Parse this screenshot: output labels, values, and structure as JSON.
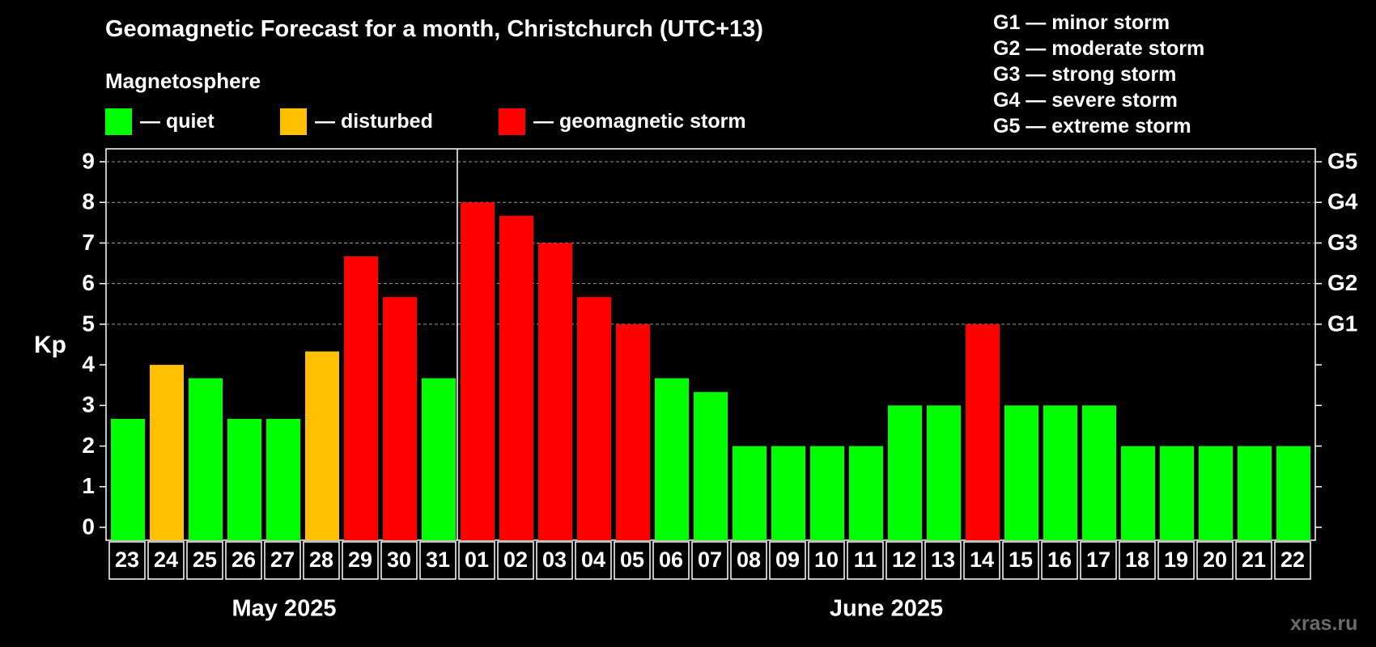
{
  "header": {
    "title": "Geomagnetic Forecast for a month, Christchurch (UTC+13)",
    "subtitle": "Magnetosphere"
  },
  "legend": [
    {
      "label": "— quiet",
      "color": "#00ff00"
    },
    {
      "label": "— disturbed",
      "color": "#ffc000"
    },
    {
      "label": "— geomagnetic storm",
      "color": "#ff0000"
    }
  ],
  "storm_scale": [
    "G1 — minor storm",
    "G2 — moderate storm",
    "G3 — strong storm",
    "G4 — severe storm",
    "G5 — extreme storm"
  ],
  "watermark": "xras.ru",
  "chart_data": {
    "type": "bar",
    "ylabel": "Kp",
    "ylim": [
      0,
      9
    ],
    "yticks": [
      "0",
      "1",
      "2",
      "3",
      "4",
      "5",
      "6",
      "7",
      "8",
      "9"
    ],
    "right_ticks": [
      {
        "value": 5,
        "label": "G1"
      },
      {
        "value": 6,
        "label": "G2"
      },
      {
        "value": 7,
        "label": "G3"
      },
      {
        "value": 8,
        "label": "G4"
      },
      {
        "value": 9,
        "label": "G5"
      }
    ],
    "grid": "dashed horizontal at Kp 5–9",
    "categories": [
      "23",
      "24",
      "25",
      "26",
      "27",
      "28",
      "29",
      "30",
      "31",
      "01",
      "02",
      "03",
      "04",
      "05",
      "06",
      "07",
      "08",
      "09",
      "10",
      "11",
      "12",
      "13",
      "14",
      "15",
      "16",
      "17",
      "18",
      "19",
      "20",
      "21",
      "22"
    ],
    "values": [
      2.67,
      4,
      3.67,
      2.67,
      2.67,
      4.33,
      6.67,
      5.67,
      3.67,
      8,
      7.67,
      7,
      5.67,
      5,
      3.67,
      3.33,
      2,
      2,
      2,
      2,
      3,
      3,
      5,
      3,
      3,
      3,
      2,
      2,
      2,
      2,
      2
    ],
    "status": [
      "quiet",
      "disturbed",
      "quiet",
      "quiet",
      "quiet",
      "disturbed",
      "storm",
      "storm",
      "quiet",
      "storm",
      "storm",
      "storm",
      "storm",
      "storm",
      "quiet",
      "quiet",
      "quiet",
      "quiet",
      "quiet",
      "quiet",
      "quiet",
      "quiet",
      "storm",
      "quiet",
      "quiet",
      "quiet",
      "quiet",
      "quiet",
      "quiet",
      "quiet",
      "quiet"
    ],
    "colors": {
      "quiet": "#00ff00",
      "disturbed": "#ffc000",
      "storm": "#ff0000"
    },
    "months": [
      {
        "label": "May 2025",
        "count": 9
      },
      {
        "label": "June 2025",
        "count": 22
      }
    ]
  }
}
